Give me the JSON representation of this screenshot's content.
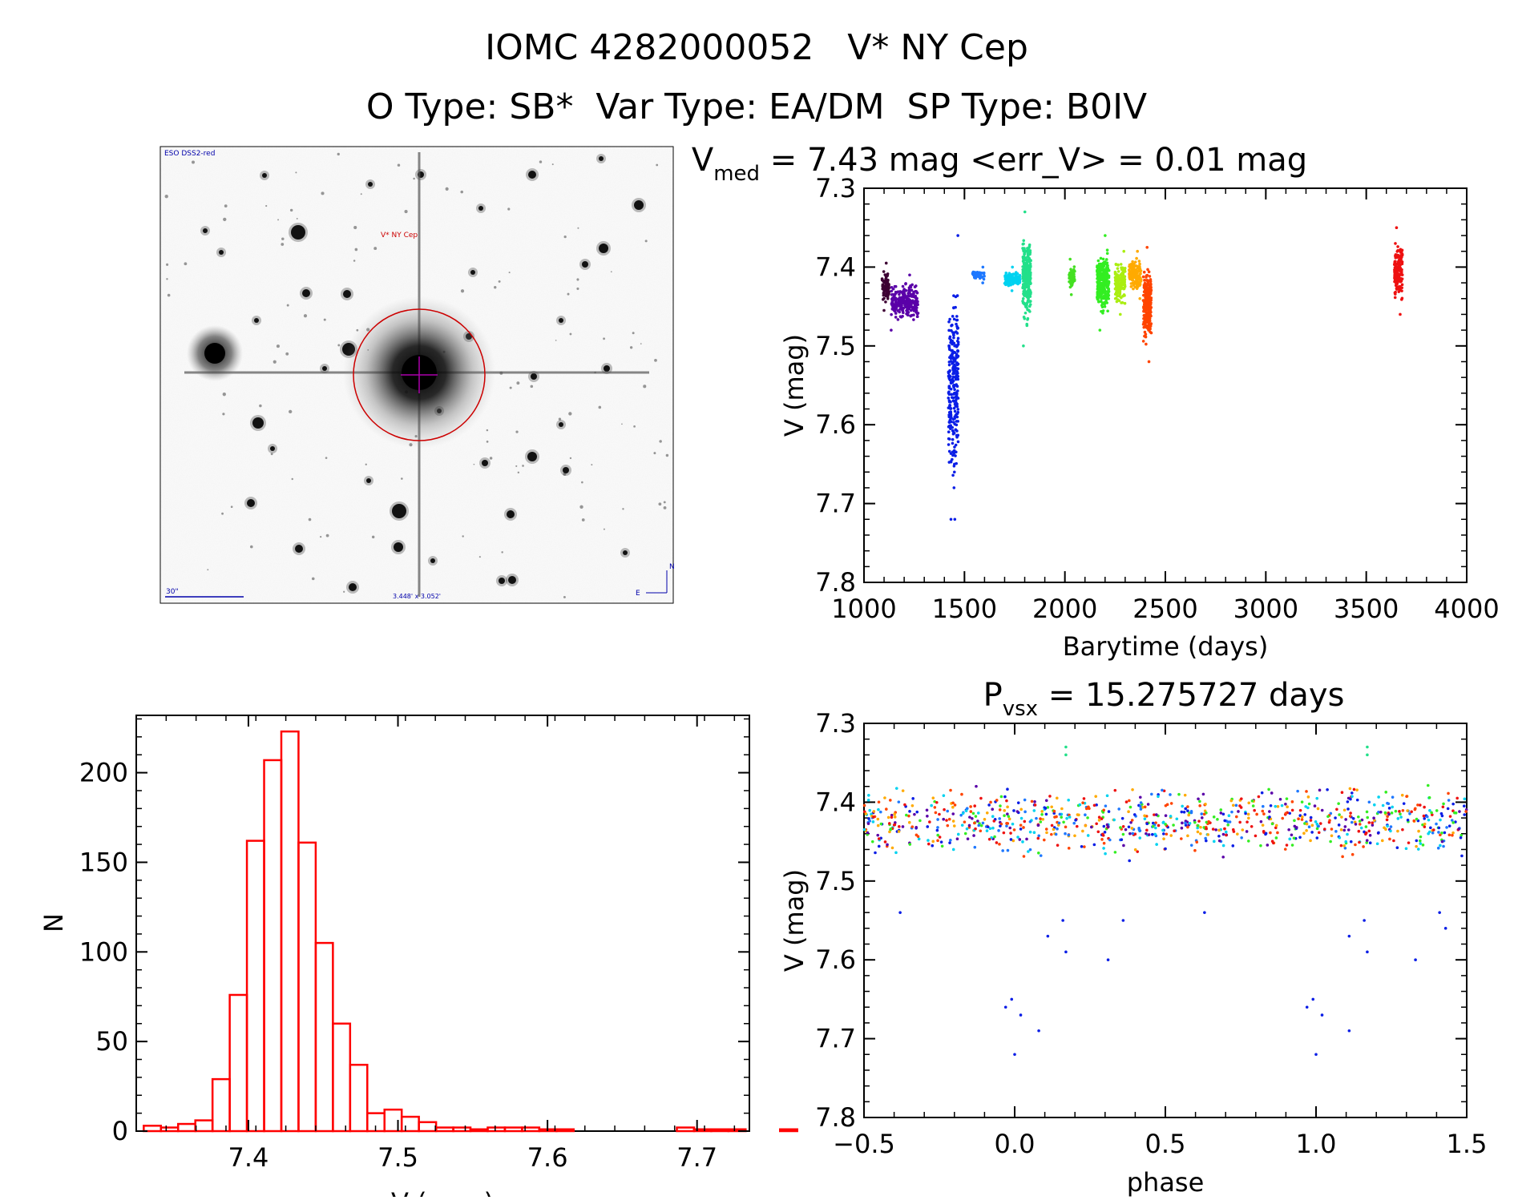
{
  "header": {
    "title": "IOMC 4282000052   V* NY Cep",
    "subtitle": "O Type: SB*  Var Type: EA/DM  SP Type: B0IV"
  },
  "finder_chart": {
    "survey_label": "ESO DSS2-red",
    "target_label": "V* NY Cep",
    "scale_label": "30\"",
    "fov_label": "3.448' x 3.052'",
    "north_label": "N",
    "east_label": "E"
  },
  "colors": {
    "histogram": "#ff0000",
    "axis": "#000000",
    "marker": "#cc0000",
    "crosshair": "#aa00aa"
  },
  "chart_data": [
    {
      "id": "light_curve",
      "type": "scatter",
      "title_main": "V",
      "title_sub": "med",
      "title_rest": " = 7.43 mag <err_V> = 0.01 mag",
      "xlabel": "Barytime (days)",
      "ylabel": "V (mag)",
      "xlim": [
        1000,
        4000
      ],
      "ylim": [
        7.3,
        7.8
      ],
      "y_inverted": true,
      "xticks": [
        1000,
        1500,
        2000,
        2500,
        3000,
        3500,
        4000
      ],
      "yticks": [
        7.3,
        7.4,
        7.5,
        7.6,
        7.7,
        7.8
      ],
      "groups": [
        {
          "color": "#3d0033",
          "x": [
            1090,
            1125
          ],
          "y": [
            7.395,
            7.455
          ]
        },
        {
          "color": "#5a00a8",
          "x": [
            1135,
            1270
          ],
          "y": [
            7.41,
            7.48
          ]
        },
        {
          "color": "#0a1ee6",
          "x": [
            1420,
            1470
          ],
          "y": [
            7.36,
            7.72
          ]
        },
        {
          "color": "#1e78ff",
          "x": [
            1540,
            1600
          ],
          "y": [
            7.4,
            7.42
          ]
        },
        {
          "color": "#00d2f0",
          "x": [
            1700,
            1780
          ],
          "y": [
            7.4,
            7.43
          ]
        },
        {
          "color": "#22e08a",
          "x": [
            1790,
            1830
          ],
          "y": [
            7.33,
            7.5
          ]
        },
        {
          "color": "#44e022",
          "x": [
            2020,
            2050
          ],
          "y": [
            7.39,
            7.435
          ]
        },
        {
          "color": "#33ee22",
          "x": [
            2160,
            2220
          ],
          "y": [
            7.36,
            7.48
          ]
        },
        {
          "color": "#aaee11",
          "x": [
            2250,
            2300
          ],
          "y": [
            7.38,
            7.46
          ]
        },
        {
          "color": "#ffaa00",
          "x": [
            2320,
            2380
          ],
          "y": [
            7.38,
            7.44
          ]
        },
        {
          "color": "#ff4400",
          "x": [
            2390,
            2430
          ],
          "y": [
            7.375,
            7.52
          ]
        },
        {
          "color": "#ee1111",
          "x": [
            3640,
            3680
          ],
          "y": [
            7.35,
            7.46
          ]
        }
      ]
    },
    {
      "id": "histogram",
      "type": "bar",
      "xlabel": "V (mag)",
      "ylabel": "N",
      "xlim": [
        7.325,
        7.735
      ],
      "ylim": [
        0,
        232
      ],
      "xticks": [
        7.4,
        7.5,
        7.6,
        7.7
      ],
      "yticks": [
        0,
        50,
        100,
        150,
        200
      ],
      "bin_start": 7.33,
      "bin_width": 0.0115,
      "counts": [
        3,
        2,
        4,
        6,
        29,
        76,
        162,
        207,
        223,
        161,
        105,
        60,
        37,
        10,
        12,
        8,
        5,
        2,
        2,
        1,
        2,
        2,
        2,
        1,
        1,
        0,
        0,
        0,
        0,
        0,
        0,
        2,
        1,
        1,
        1,
        0,
        0,
        1,
        0
      ]
    },
    {
      "id": "phased",
      "type": "scatter",
      "title_main": "P",
      "title_sub": "vsx",
      "title_rest": " = 15.275727 days",
      "xlabel": "phase",
      "ylabel": "V (mag)",
      "xlim": [
        -0.5,
        1.5
      ],
      "ylim": [
        7.3,
        7.8
      ],
      "y_inverted": true,
      "xticks": [
        -0.5,
        0.0,
        0.5,
        1.0,
        1.5
      ],
      "yticks": [
        7.3,
        7.4,
        7.5,
        7.6,
        7.7,
        7.8
      ],
      "band_colors": [
        "#33ee22",
        "#ee1111",
        "#1e78ff",
        "#0a1ee6",
        "#00d2f0",
        "#ffaa00",
        "#5a00a8",
        "#ff4400"
      ],
      "band_y": [
        7.37,
        7.48
      ],
      "eclipse_points": [
        {
          "x": -0.03,
          "y": 7.66
        },
        {
          "x": -0.01,
          "y": 7.65
        },
        {
          "x": 0.0,
          "y": 7.72
        },
        {
          "x": 0.02,
          "y": 7.67
        },
        {
          "x": 0.08,
          "y": 7.69
        },
        {
          "x": 0.11,
          "y": 7.57
        },
        {
          "x": 0.16,
          "y": 7.55
        },
        {
          "x": 0.17,
          "y": 7.59
        },
        {
          "x": 0.36,
          "y": 7.55
        },
        {
          "x": 0.31,
          "y": 7.6
        },
        {
          "x": 0.63,
          "y": 7.54
        },
        {
          "x": -0.38,
          "y": 7.54
        },
        {
          "x": 0.97,
          "y": 7.66
        },
        {
          "x": 0.99,
          "y": 7.65
        },
        {
          "x": 1.0,
          "y": 7.72
        },
        {
          "x": 1.02,
          "y": 7.67
        },
        {
          "x": 1.11,
          "y": 7.69
        },
        {
          "x": 1.11,
          "y": 7.57
        },
        {
          "x": 1.16,
          "y": 7.55
        },
        {
          "x": 1.17,
          "y": 7.59
        },
        {
          "x": 1.33,
          "y": 7.6
        },
        {
          "x": 1.41,
          "y": 7.54
        },
        {
          "x": 1.43,
          "y": 7.56
        }
      ],
      "bright_points": [
        {
          "x": 0.17,
          "y": 7.33
        },
        {
          "x": 0.17,
          "y": 7.34
        },
        {
          "x": 1.17,
          "y": 7.33
        },
        {
          "x": 1.17,
          "y": 7.34
        }
      ]
    }
  ]
}
